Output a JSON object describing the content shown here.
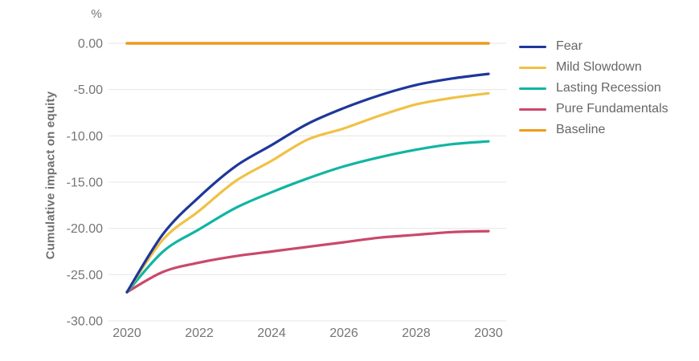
{
  "chart": {
    "unit_label": "%",
    "y_axis_title": "Cumulative impact on equity",
    "colors": {
      "grid": "#e6e6e6",
      "tick_text": "#757575",
      "legend_text": "#666666",
      "background": "#ffffff"
    }
  },
  "chart_data": {
    "type": "line",
    "title": "",
    "xlabel": "",
    "ylabel": "Cumulative impact on equity",
    "unit": "%",
    "grid": "horizontal-only",
    "legend_position": "right",
    "xlim": [
      2019.5,
      2030.5
    ],
    "ylim": [
      -30,
      0
    ],
    "x": [
      2020,
      2021,
      2022,
      2023,
      2024,
      2025,
      2026,
      2027,
      2028,
      2029,
      2030
    ],
    "xticks": [
      2020,
      2022,
      2024,
      2026,
      2028,
      2030
    ],
    "xtick_labels": [
      "2020",
      "2022",
      "2024",
      "2026",
      "2028",
      "2030"
    ],
    "yticks": [
      0,
      -5,
      -10,
      -15,
      -20,
      -25,
      -30
    ],
    "ytick_labels": [
      "0.00",
      "-5.00",
      "-10.00",
      "-15.00",
      "-20.00",
      "-25.00",
      "-30.00"
    ],
    "series": [
      {
        "name": "Fear",
        "color": "#1e3799",
        "values": [
          -26.9,
          -20.6,
          -16.6,
          -13.3,
          -11.0,
          -8.7,
          -7.0,
          -5.6,
          -4.5,
          -3.8,
          -3.3
        ]
      },
      {
        "name": "Mild Slowdown",
        "color": "#f0c145",
        "values": [
          -26.9,
          -21.2,
          -18.1,
          -14.9,
          -12.7,
          -10.4,
          -9.2,
          -7.8,
          -6.6,
          -5.9,
          -5.4
        ]
      },
      {
        "name": "Lasting Recession",
        "color": "#10b5a3",
        "values": [
          -26.9,
          -22.5,
          -20.1,
          -17.8,
          -16.1,
          -14.6,
          -13.3,
          -12.3,
          -11.5,
          -10.9,
          -10.6
        ]
      },
      {
        "name": "Pure Fundamentals",
        "color": "#c9496b",
        "values": [
          -26.9,
          -24.7,
          -23.7,
          -23.0,
          -22.5,
          -22.0,
          -21.5,
          -21.0,
          -20.7,
          -20.4,
          -20.3
        ]
      },
      {
        "name": "Baseline",
        "color": "#ec9b1d",
        "values": [
          0,
          0,
          0,
          0,
          0,
          0,
          0,
          0,
          0,
          0,
          0
        ]
      }
    ]
  }
}
